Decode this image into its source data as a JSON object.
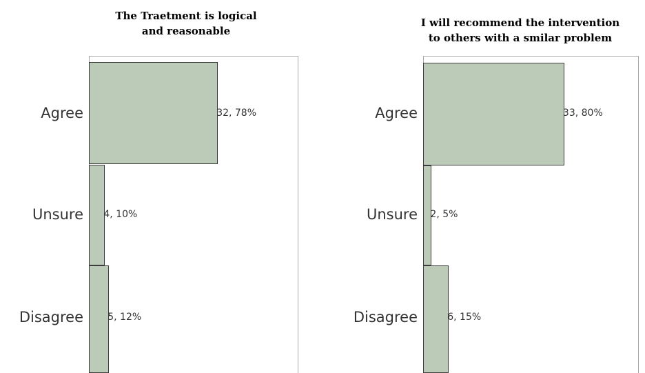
{
  "chart_data": [
    {
      "type": "bar",
      "orientation": "horizontal",
      "title": [
        "The Traetment is logical",
        "and reasonable"
      ],
      "categories": [
        "Agree",
        "Unsure",
        "Disagree"
      ],
      "values": [
        32,
        4,
        5
      ],
      "labels": [
        "32, 78%",
        "4, 10%",
        "5, 12%"
      ],
      "xlim": [
        0,
        40
      ]
    },
    {
      "type": "bar",
      "orientation": "horizontal",
      "title": [
        "I will recommend the intervention",
        "to others with a smilar problem"
      ],
      "categories": [
        "Agree",
        "Unsure",
        "Disagree"
      ],
      "values": [
        33,
        2,
        6
      ],
      "labels": [
        "33, 80%",
        "2, 5%",
        "6, 15%"
      ],
      "xlim": [
        0,
        40
      ]
    }
  ],
  "colors": {
    "bar_fill": "#bccab8",
    "bar_border": "#3c3c3c"
  }
}
